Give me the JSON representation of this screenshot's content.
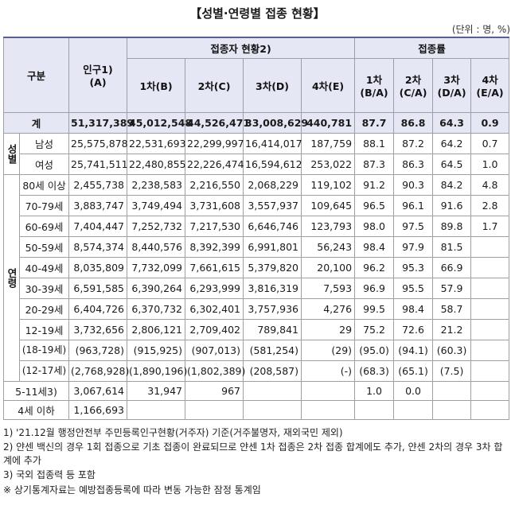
{
  "title": "【성별·연령별 접종 현황】",
  "unit": "(단위 : 명, %)",
  "header": {
    "category": "구분",
    "population": "인구1)",
    "population_sub": "(A)",
    "vaccinated_group": "접종자 현황2)",
    "rate_group": "접종률",
    "col_b": "1차(B)",
    "col_c": "2차(C)",
    "col_d": "3차(D)",
    "col_e": "4차(E)",
    "rate_1": "1차",
    "rate_1_sub": "(B/A)",
    "rate_2": "2차",
    "rate_2_sub": "(C/A)",
    "rate_3": "3차",
    "rate_3_sub": "(D/A)",
    "rate_4": "4차",
    "rate_4_sub": "(E/A)"
  },
  "groups": {
    "sex": "성별",
    "age": "연령"
  },
  "total": {
    "label": "계",
    "a": "51,317,389",
    "b": "45,012,548",
    "c": "44,526,471",
    "d": "33,008,629",
    "e": "440,781",
    "r1": "87.7",
    "r2": "86.8",
    "r3": "64.3",
    "r4": "0.9"
  },
  "rows": [
    {
      "label": "남성",
      "a": "25,575,878",
      "b": "22,531,693",
      "c": "22,299,997",
      "d": "16,414,017",
      "e": "187,759",
      "r1": "88.1",
      "r2": "87.2",
      "r3": "64.2",
      "r4": "0.7"
    },
    {
      "label": "여성",
      "a": "25,741,511",
      "b": "22,480,855",
      "c": "22,226,474",
      "d": "16,594,612",
      "e": "253,022",
      "r1": "87.3",
      "r2": "86.3",
      "r3": "64.5",
      "r4": "1.0"
    },
    {
      "label": "80세 이상",
      "a": "2,455,738",
      "b": "2,238,583",
      "c": "2,216,550",
      "d": "2,068,229",
      "e": "119,102",
      "r1": "91.2",
      "r2": "90.3",
      "r3": "84.2",
      "r4": "4.8"
    },
    {
      "label": "70-79세",
      "a": "3,883,747",
      "b": "3,749,494",
      "c": "3,731,608",
      "d": "3,557,937",
      "e": "109,645",
      "r1": "96.5",
      "r2": "96.1",
      "r3": "91.6",
      "r4": "2.8"
    },
    {
      "label": "60-69세",
      "a": "7,404,447",
      "b": "7,252,732",
      "c": "7,217,530",
      "d": "6,646,746",
      "e": "123,793",
      "r1": "98.0",
      "r2": "97.5",
      "r3": "89.8",
      "r4": "1.7"
    },
    {
      "label": "50-59세",
      "a": "8,574,374",
      "b": "8,440,576",
      "c": "8,392,399",
      "d": "6,991,801",
      "e": "56,243",
      "r1": "98.4",
      "r2": "97.9",
      "r3": "81.5",
      "r4": ""
    },
    {
      "label": "40-49세",
      "a": "8,035,809",
      "b": "7,732,099",
      "c": "7,661,615",
      "d": "5,379,820",
      "e": "20,100",
      "r1": "96.2",
      "r2": "95.3",
      "r3": "66.9",
      "r4": ""
    },
    {
      "label": "30-39세",
      "a": "6,591,585",
      "b": "6,390,264",
      "c": "6,293,999",
      "d": "3,816,319",
      "e": "7,593",
      "r1": "96.9",
      "r2": "95.5",
      "r3": "57.9",
      "r4": ""
    },
    {
      "label": "20-29세",
      "a": "6,404,726",
      "b": "6,370,732",
      "c": "6,302,401",
      "d": "3,757,936",
      "e": "4,276",
      "r1": "99.5",
      "r2": "98.4",
      "r3": "58.7",
      "r4": ""
    },
    {
      "label": "12-19세",
      "a": "3,732,656",
      "b": "2,806,121",
      "c": "2,709,402",
      "d": "789,841",
      "e": "29",
      "r1": "75.2",
      "r2": "72.6",
      "r3": "21.2",
      "r4": ""
    },
    {
      "label": "(18-19세)",
      "a": "(963,728)",
      "b": "(915,925)",
      "c": "(907,013)",
      "d": "(581,254)",
      "e": "(29)",
      "r1": "(95.0)",
      "r2": "(94.1)",
      "r3": "(60.3)",
      "r4": ""
    },
    {
      "label": "(12-17세)",
      "a": "(2,768,928)",
      "b": "(1,890,196)",
      "c": "(1,802,389)",
      "d": "(208,587)",
      "e": "(-)",
      "r1": "(68.3)",
      "r2": "(65.1)",
      "r3": "(7.5)",
      "r4": ""
    },
    {
      "label": "5-11세3)",
      "a": "3,067,614",
      "b": "31,947",
      "c": "967",
      "d": "",
      "e": "",
      "r1": "1.0",
      "r2": "0.0",
      "r3": "",
      "r4": ""
    },
    {
      "label": "4세 이하",
      "a": "1,166,693",
      "b": "",
      "c": "",
      "d": "",
      "e": "",
      "r1": "",
      "r2": "",
      "r3": "",
      "r4": ""
    }
  ],
  "notes": [
    "1) '21.12월 행정안전부 주민등록인구현황(거주자) 기준(거주불명자, 재외국민 제외)",
    "2) 얀센 백신의 경우 1회 접종으로 기초 접종이 완료되므로 얀센 1차 접종은 2차 접종 합계에도 추가, 얀센 2차의 경우 3차 합계에 추가",
    "3) 국외 접종력 등 포함",
    "※ 상기통계자료는 예방접종등록에 따라 변동 가능한 잠정 통계임"
  ]
}
